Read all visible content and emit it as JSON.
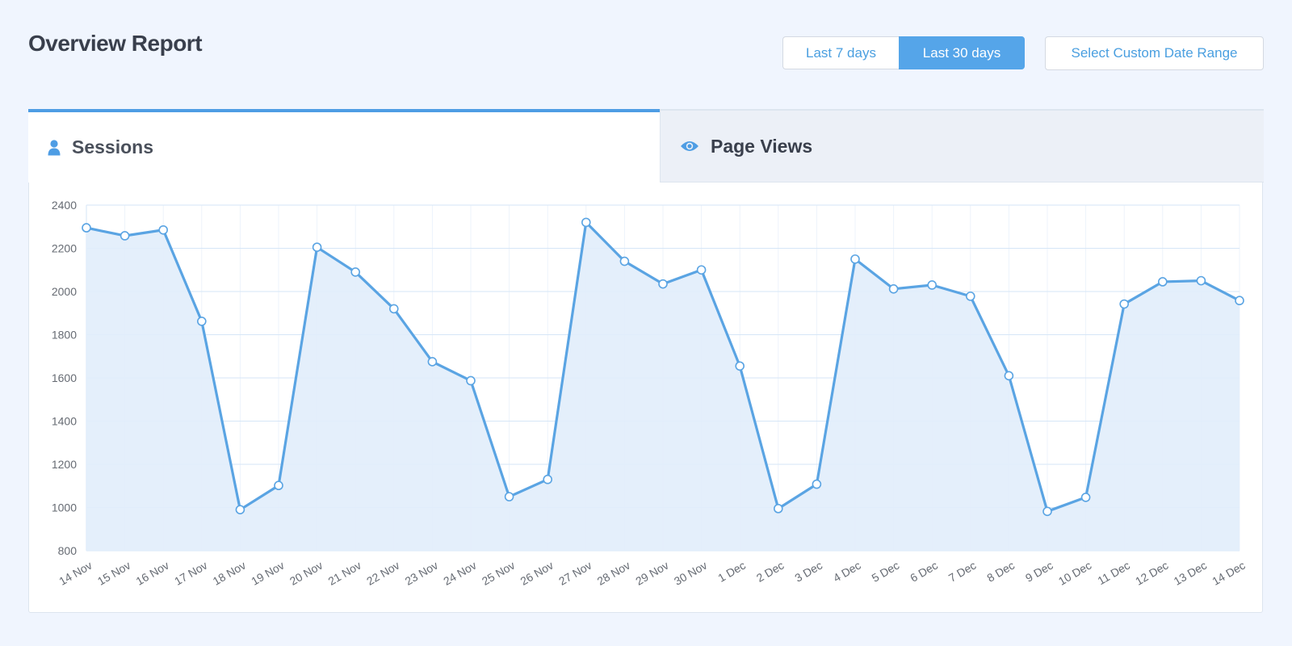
{
  "header": {
    "title": "Overview Report",
    "range_buttons": [
      "Last 7 days",
      "Last 30 days"
    ],
    "active_range": "Last 30 days",
    "custom_range_label": "Select Custom Date Range"
  },
  "tabs": [
    {
      "label": "Sessions",
      "icon": "user-icon",
      "active": true
    },
    {
      "label": "Page Views",
      "icon": "eye-icon",
      "active": false
    }
  ],
  "colors": {
    "accent": "#55a5e9",
    "line": "#5aa4e3",
    "fill": "#e1edfb",
    "grid": "#d6e6f7"
  },
  "chart_data": {
    "type": "area",
    "x": [
      "14 Nov",
      "15 Nov",
      "16 Nov",
      "17 Nov",
      "18 Nov",
      "19 Nov",
      "20 Nov",
      "21 Nov",
      "22 Nov",
      "23 Nov",
      "24 Nov",
      "25 Nov",
      "26 Nov",
      "27 Nov",
      "28 Nov",
      "29 Nov",
      "30 Nov",
      "1 Dec",
      "2 Dec",
      "3 Dec",
      "4 Dec",
      "5 Dec",
      "6 Dec",
      "7 Dec",
      "8 Dec",
      "9 Dec",
      "10 Dec",
      "11 Dec",
      "12 Dec",
      "13 Dec",
      "14 Dec"
    ],
    "series": [
      {
        "values": [
          2295,
          2258,
          2285,
          1862,
          990,
          1102,
          2205,
          2090,
          1920,
          1675,
          1587,
          1050,
          1130,
          2320,
          2140,
          2035,
          2100,
          1655,
          995,
          1108,
          2150,
          2012,
          2030,
          1978,
          1610,
          982,
          1047,
          1942,
          2045,
          2050,
          1958
        ]
      }
    ],
    "ylim": [
      800,
      2400
    ],
    "yticks": [
      2400,
      2200,
      2000,
      1800,
      1600,
      1400,
      1200,
      1000,
      800
    ],
    "grid": true,
    "legend": "none"
  }
}
